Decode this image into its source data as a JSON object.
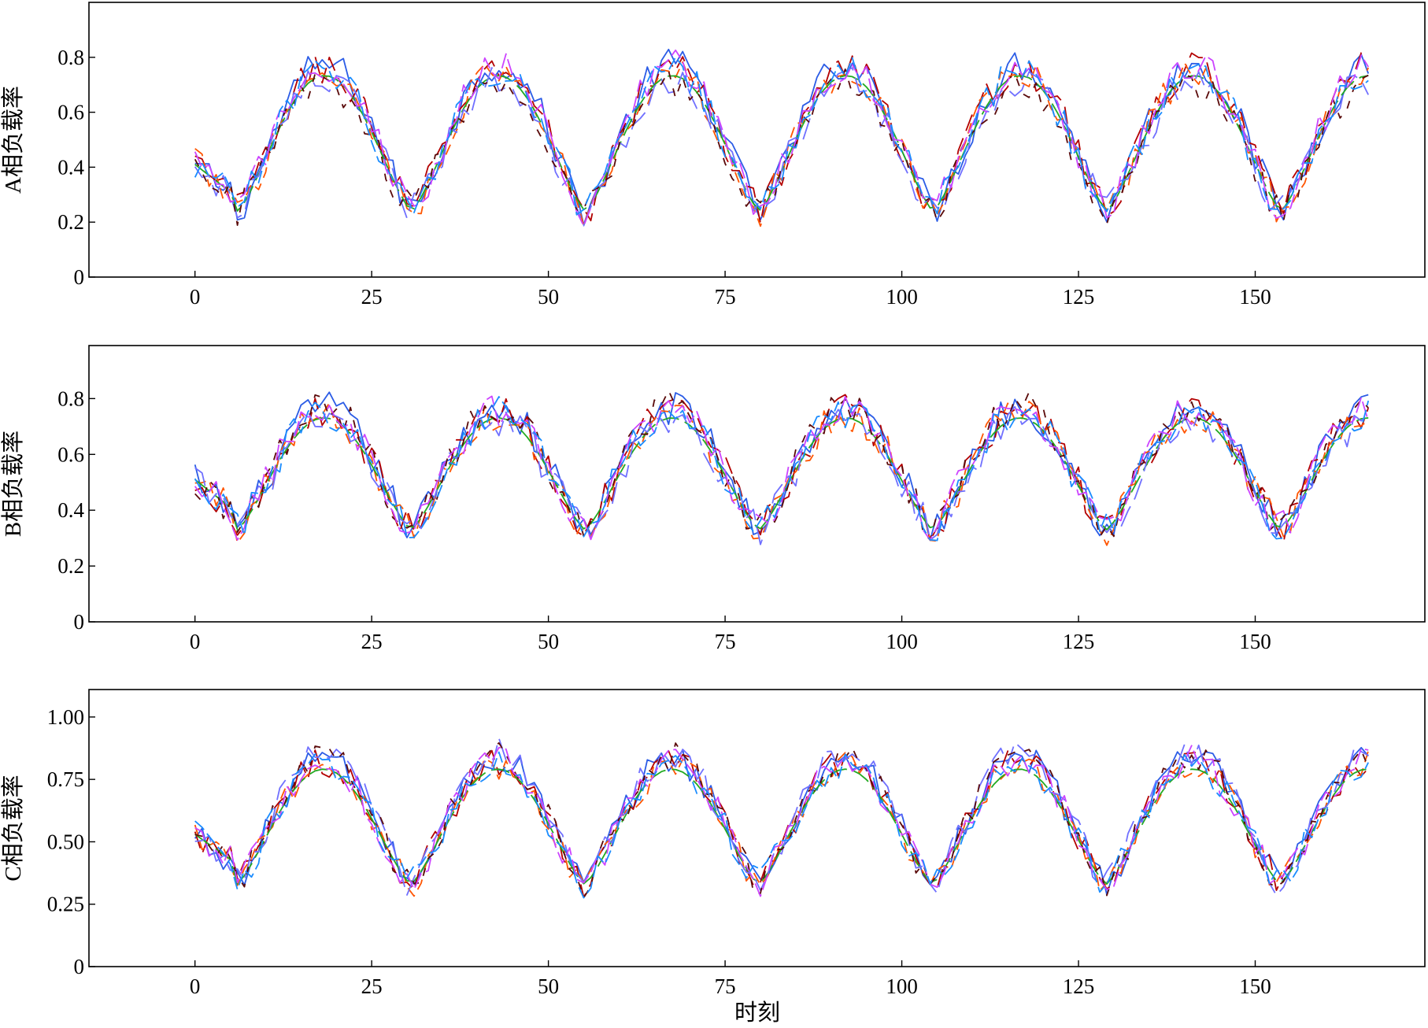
{
  "figure": {
    "xlabel": "时刻",
    "colors": [
      "#2b5ce6",
      "#b30000",
      "#ff5500",
      "#22aa22",
      "#7070ff",
      "#5a0a0a",
      "#cc44ff",
      "#1a8cff"
    ]
  },
  "chart_data": [
    {
      "type": "line",
      "panel": "A",
      "title": "",
      "xlabel": "",
      "ylabel": "A相负载率",
      "xlim": [
        -15,
        174
      ],
      "ylim": [
        0,
        1.0
      ],
      "xticks": [
        0,
        25,
        50,
        75,
        100,
        125,
        150
      ],
      "xtick_labels": [
        "0",
        "25",
        "50",
        "75",
        "100",
        "125",
        "150"
      ],
      "yticks": [
        0,
        0.2,
        0.4,
        0.6,
        0.8
      ],
      "ytick_labels": [
        "0",
        "0.2",
        "0.4",
        "0.6",
        "0.8"
      ],
      "x_range": [
        0,
        166
      ],
      "n_series": 8,
      "waveform": {
        "base": 0.24,
        "amplitude": 0.5,
        "valley_start": 0.05,
        "period": 24.6,
        "offset": 6.3
      }
    },
    {
      "type": "line",
      "panel": "B",
      "title": "",
      "xlabel": "",
      "ylabel": "B相负载率",
      "xlim": [
        -15,
        174
      ],
      "ylim": [
        0,
        0.99
      ],
      "xticks": [
        0,
        25,
        50,
        75,
        100,
        125,
        150
      ],
      "xtick_labels": [
        "0",
        "25",
        "50",
        "75",
        "100",
        "125",
        "150"
      ],
      "yticks": [
        0,
        0.2,
        0.4,
        0.6,
        0.8
      ],
      "ytick_labels": [
        "0",
        "0.2",
        "0.4",
        "0.6",
        "0.8"
      ],
      "x_range": [
        0,
        166
      ],
      "n_series": 8,
      "waveform": {
        "base": 0.33,
        "amplitude": 0.42,
        "valley_start": 0.06,
        "period": 24.6,
        "offset": 6.3
      }
    },
    {
      "type": "line",
      "panel": "C",
      "title": "",
      "xlabel": "时刻",
      "ylabel": "C相负载率",
      "xlim": [
        -15,
        174
      ],
      "ylim": [
        0,
        1.11
      ],
      "xticks": [
        0,
        25,
        50,
        75,
        100,
        125,
        150
      ],
      "xtick_labels": [
        "0",
        "25",
        "50",
        "75",
        "100",
        "125",
        "150"
      ],
      "yticks": [
        0,
        0.25,
        0.5,
        0.75,
        1.0
      ],
      "ytick_labels": [
        "0",
        "0.25",
        "0.50",
        "0.75",
        "1.00"
      ],
      "x_range": [
        0,
        166
      ],
      "n_series": 8,
      "waveform": {
        "base": 0.33,
        "amplitude": 0.5,
        "valley_start": 0.08,
        "period": 24.6,
        "offset": 6.3
      }
    }
  ]
}
